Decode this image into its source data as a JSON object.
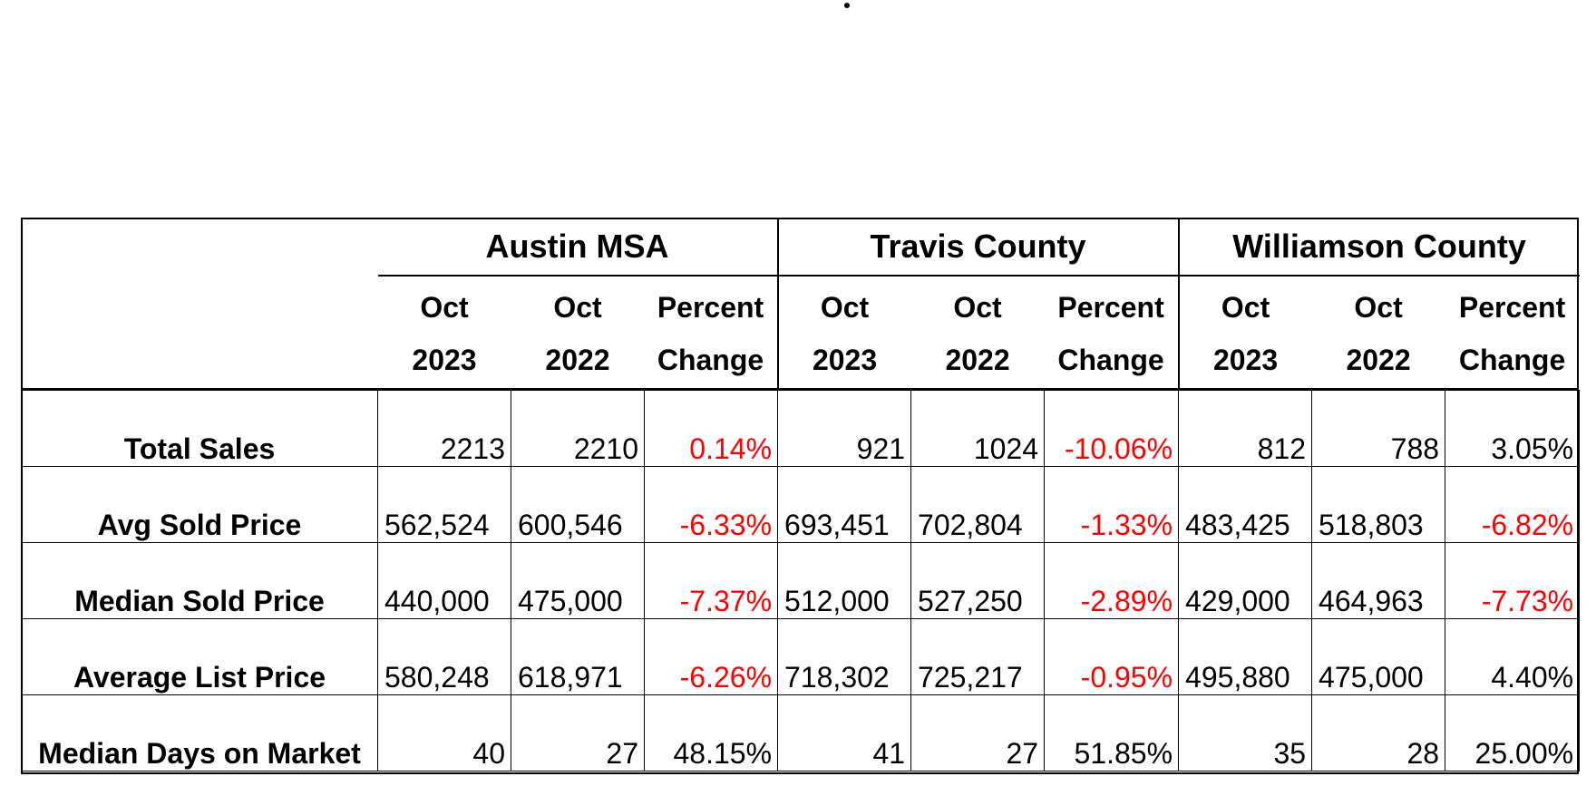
{
  "regions": [
    {
      "name": "Austin MSA",
      "col1": [
        "Oct",
        "2023"
      ],
      "col2": [
        "Oct",
        "2022"
      ],
      "col3": [
        "Percent",
        "Change"
      ]
    },
    {
      "name": "Travis County",
      "col1": [
        "Oct",
        "2023"
      ],
      "col2": [
        "Oct",
        "2022"
      ],
      "col3": [
        "Percent",
        "Change"
      ]
    },
    {
      "name": "Williamson County",
      "col1": [
        "Oct",
        "2023"
      ],
      "col2": [
        "Oct",
        "2022"
      ],
      "col3": [
        "Percent",
        "Change"
      ]
    }
  ],
  "rows": [
    {
      "label": "Total Sales",
      "cells": [
        {
          "v": "2213",
          "align": "right"
        },
        {
          "v": "2210",
          "align": "right"
        },
        {
          "v": "0.14%",
          "neg": true
        },
        {
          "v": "921",
          "align": "right"
        },
        {
          "v": "1024",
          "align": "right"
        },
        {
          "v": "-10.06%",
          "neg": true
        },
        {
          "v": "812",
          "align": "right"
        },
        {
          "v": "788",
          "align": "right"
        },
        {
          "v": "3.05%",
          "neg": false
        }
      ]
    },
    {
      "label": "Avg Sold Price",
      "cells": [
        {
          "v": "562,524",
          "align": "left"
        },
        {
          "v": "600,546",
          "align": "left"
        },
        {
          "v": "-6.33%",
          "neg": true
        },
        {
          "v": "693,451",
          "align": "left"
        },
        {
          "v": "702,804",
          "align": "left"
        },
        {
          "v": "-1.33%",
          "neg": true
        },
        {
          "v": "483,425",
          "align": "left"
        },
        {
          "v": "518,803",
          "align": "left"
        },
        {
          "v": "-6.82%",
          "neg": true
        }
      ]
    },
    {
      "label": "Median Sold Price",
      "cells": [
        {
          "v": "440,000",
          "align": "left"
        },
        {
          "v": "475,000",
          "align": "left"
        },
        {
          "v": "-7.37%",
          "neg": true
        },
        {
          "v": "512,000",
          "align": "left"
        },
        {
          "v": "527,250",
          "align": "left"
        },
        {
          "v": "-2.89%",
          "neg": true
        },
        {
          "v": "429,000",
          "align": "left"
        },
        {
          "v": "464,963",
          "align": "left"
        },
        {
          "v": "-7.73%",
          "neg": true
        }
      ]
    },
    {
      "label": "Average List Price",
      "cells": [
        {
          "v": "580,248",
          "align": "left"
        },
        {
          "v": "618,971",
          "align": "left"
        },
        {
          "v": "-6.26%",
          "neg": true
        },
        {
          "v": "718,302",
          "align": "left"
        },
        {
          "v": "725,217",
          "align": "left"
        },
        {
          "v": "-0.95%",
          "neg": true
        },
        {
          "v": "495,880",
          "align": "left"
        },
        {
          "v": "475,000",
          "align": "left"
        },
        {
          "v": "4.40%",
          "neg": false
        }
      ]
    },
    {
      "label": "Median Days on Market",
      "cells": [
        {
          "v": "40",
          "align": "right"
        },
        {
          "v": "27",
          "align": "right"
        },
        {
          "v": "48.15%",
          "neg": false
        },
        {
          "v": "41",
          "align": "right"
        },
        {
          "v": "27",
          "align": "right"
        },
        {
          "v": "51.85%",
          "neg": false
        },
        {
          "v": "35",
          "align": "right"
        },
        {
          "v": "28",
          "align": "right"
        },
        {
          "v": "25.00%",
          "neg": false
        }
      ]
    }
  ],
  "colors": {
    "negative": "#ff0000",
    "text": "#000000"
  }
}
